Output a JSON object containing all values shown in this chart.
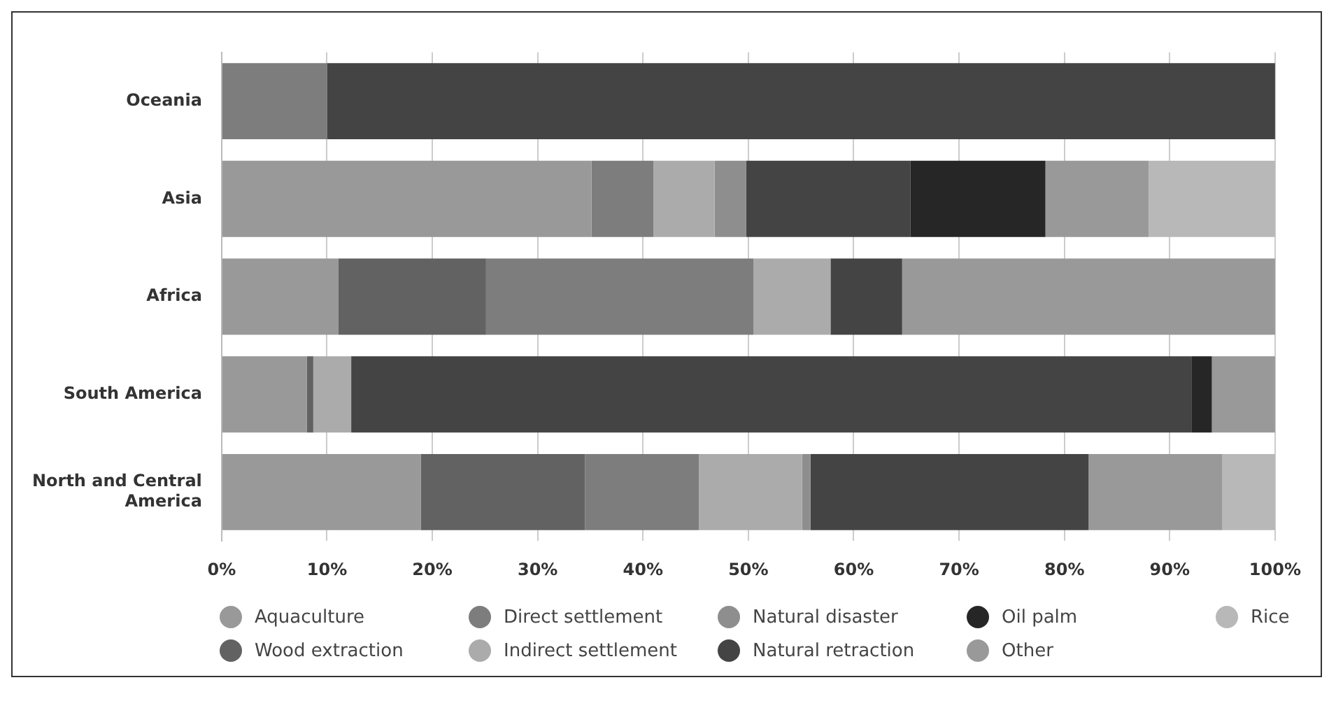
{
  "chart_data": {
    "type": "bar",
    "orientation": "horizontal",
    "stacked": true,
    "categories": [
      "Oceania",
      "Asia",
      "Africa",
      "South America",
      "North and Central America"
    ],
    "xlim": [
      0,
      100
    ],
    "xticks": [
      {
        "value": 0,
        "label": "0%"
      },
      {
        "value": 10,
        "label": "10%"
      },
      {
        "value": 20,
        "label": "20%"
      },
      {
        "value": 30,
        "label": "30%"
      },
      {
        "value": 40,
        "label": "40%"
      },
      {
        "value": 50,
        "label": "50%"
      },
      {
        "value": 60,
        "label": "60%"
      },
      {
        "value": 70,
        "label": "70%"
      },
      {
        "value": 80,
        "label": "80%"
      },
      {
        "value": 90,
        "label": "90%"
      },
      {
        "value": 100,
        "label": "100%"
      }
    ],
    "grid": "x",
    "legend": "bottom",
    "series": [
      {
        "name": "Aquaculture",
        "color": "#999999",
        "values": [
          0,
          35.1,
          11.1,
          8.1,
          18.9
        ]
      },
      {
        "name": "Wood extraction",
        "color": "#626262",
        "values": [
          0,
          0,
          14.0,
          0.6,
          15.6
        ]
      },
      {
        "name": "Direct settlement",
        "color": "#7d7d7d",
        "values": [
          10,
          5.9,
          25.4,
          0,
          10.8
        ]
      },
      {
        "name": "Indirect settlement",
        "color": "#ababab",
        "values": [
          0,
          5.8,
          7.3,
          3.6,
          9.8
        ]
      },
      {
        "name": "Natural disaster",
        "color": "#8e8e8e",
        "values": [
          0,
          3.0,
          0,
          0,
          0.8
        ]
      },
      {
        "name": "Natural retraction",
        "color": "#444444",
        "values": [
          90,
          15.6,
          6.8,
          79.8,
          26.4
        ]
      },
      {
        "name": "Oil palm",
        "color": "#262626",
        "values": [
          0,
          12.8,
          0,
          1.9,
          0
        ]
      },
      {
        "name": "Other",
        "color": "#999999",
        "values": [
          0,
          9.8,
          35.4,
          6.0,
          12.7
        ]
      },
      {
        "name": "Rice",
        "color": "#b8b8b8",
        "values": [
          0,
          12.0,
          0,
          0,
          5.0
        ]
      }
    ]
  }
}
